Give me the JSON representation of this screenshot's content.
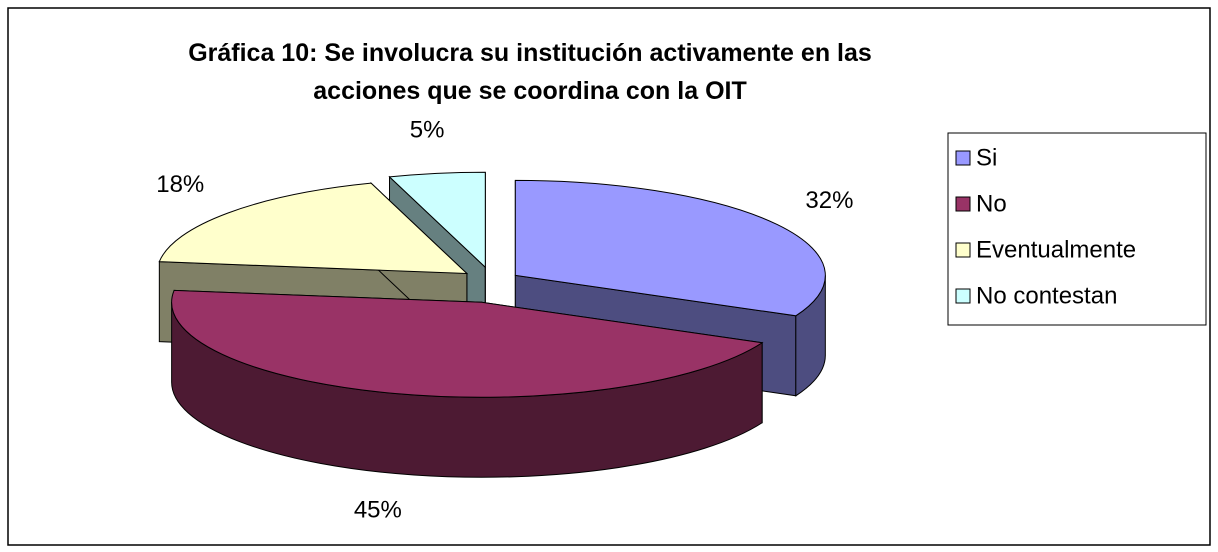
{
  "chart_data": {
    "type": "pie3d",
    "title": "Gráfica 10: Se involucra su institución activamente en las acciones que se coordina con la OIT",
    "categories": [
      "Si",
      "No",
      "Eventualmente",
      "No contestan"
    ],
    "values": [
      32,
      45,
      18,
      5
    ],
    "value_labels": [
      "32%",
      "45%",
      "18%",
      "5%"
    ],
    "colors": [
      "#9999ff",
      "#993366",
      "#ffffcc",
      "#ccffff"
    ],
    "legend": "right"
  }
}
